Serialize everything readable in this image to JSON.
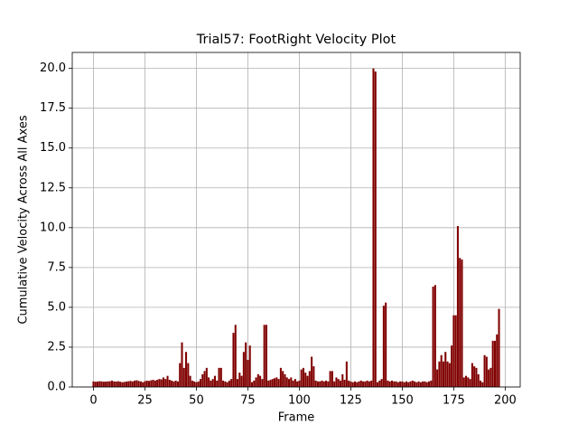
{
  "chart_data": {
    "type": "bar",
    "title": "Trial57: FootRight Velocity Plot",
    "x_label": "Frame",
    "y_label": "Cumulative Velocity Across All Axes",
    "color": "#800000",
    "grid": true,
    "xlim": [
      -10.3,
      207.3
    ],
    "ylim": [
      0,
      21.0
    ],
    "xticks": [
      0,
      25,
      50,
      75,
      100,
      125,
      150,
      175,
      200
    ],
    "yticks": [
      {
        "value": 0,
        "label": "0.0"
      },
      {
        "value": 2.5,
        "label": "2.5"
      },
      {
        "value": 5,
        "label": "5.0"
      },
      {
        "value": 7.5,
        "label": "7.5"
      },
      {
        "value": 10,
        "label": "10.0"
      },
      {
        "value": 12.5,
        "label": "12.5"
      },
      {
        "value": 15,
        "label": "15.0"
      },
      {
        "value": 17.5,
        "label": "17.5"
      },
      {
        "value": 20,
        "label": "20.0"
      }
    ],
    "x": [
      0,
      1,
      2,
      3,
      4,
      5,
      6,
      7,
      8,
      9,
      10,
      11,
      12,
      13,
      14,
      15,
      16,
      17,
      18,
      19,
      20,
      21,
      22,
      23,
      24,
      25,
      26,
      27,
      28,
      29,
      30,
      31,
      32,
      33,
      34,
      35,
      36,
      37,
      38,
      39,
      40,
      41,
      42,
      43,
      44,
      45,
      46,
      47,
      48,
      49,
      50,
      51,
      52,
      53,
      54,
      55,
      56,
      57,
      58,
      59,
      60,
      61,
      62,
      63,
      64,
      65,
      66,
      67,
      68,
      69,
      70,
      71,
      72,
      73,
      74,
      75,
      76,
      77,
      78,
      79,
      80,
      81,
      82,
      83,
      84,
      85,
      86,
      87,
      88,
      89,
      90,
      91,
      92,
      93,
      94,
      95,
      96,
      97,
      98,
      99,
      100,
      101,
      102,
      103,
      104,
      105,
      106,
      107,
      108,
      109,
      110,
      111,
      112,
      113,
      114,
      115,
      116,
      117,
      118,
      119,
      120,
      121,
      122,
      123,
      124,
      125,
      126,
      127,
      128,
      129,
      130,
      131,
      132,
      133,
      134,
      135,
      136,
      137,
      138,
      139,
      140,
      141,
      142,
      143,
      144,
      145,
      146,
      147,
      148,
      149,
      150,
      151,
      152,
      153,
      154,
      155,
      156,
      157,
      158,
      159,
      160,
      161,
      162,
      163,
      164,
      165,
      166,
      167,
      168,
      169,
      170,
      171,
      172,
      173,
      174,
      175,
      176,
      177,
      178,
      179,
      180,
      181,
      182,
      183,
      184,
      185,
      186,
      187,
      188,
      189,
      190,
      191,
      192,
      193,
      194,
      195,
      196,
      197
    ],
    "values": [
      0.35,
      0.33,
      0.34,
      0.36,
      0.35,
      0.33,
      0.34,
      0.35,
      0.36,
      0.4,
      0.35,
      0.34,
      0.36,
      0.33,
      0.3,
      0.32,
      0.34,
      0.36,
      0.38,
      0.35,
      0.4,
      0.42,
      0.38,
      0.35,
      0.3,
      0.36,
      0.4,
      0.38,
      0.42,
      0.45,
      0.4,
      0.45,
      0.5,
      0.48,
      0.6,
      0.5,
      0.7,
      0.45,
      0.4,
      0.35,
      0.4,
      0.35,
      1.5,
      2.8,
      1.2,
      2.2,
      1.5,
      0.7,
      0.4,
      0.35,
      0.3,
      0.35,
      0.5,
      0.8,
      1.0,
      1.2,
      0.6,
      0.4,
      0.5,
      0.7,
      0.4,
      1.2,
      1.2,
      0.4,
      0.35,
      0.3,
      0.4,
      0.5,
      3.4,
      3.9,
      0.5,
      0.9,
      0.7,
      2.2,
      2.8,
      1.7,
      2.6,
      0.3,
      0.4,
      0.6,
      0.8,
      0.7,
      0.5,
      3.9,
      3.9,
      0.4,
      0.45,
      0.5,
      0.55,
      0.6,
      0.5,
      1.2,
      1.0,
      0.8,
      0.6,
      0.5,
      0.6,
      0.4,
      0.5,
      0.35,
      0.4,
      1.1,
      1.2,
      0.9,
      0.7,
      1.0,
      1.9,
      1.3,
      0.4,
      0.35,
      0.35,
      0.4,
      0.35,
      0.4,
      0.35,
      1.0,
      1.0,
      0.35,
      0.6,
      0.5,
      0.4,
      0.8,
      0.45,
      1.6,
      0.4,
      0.35,
      0.3,
      0.35,
      0.3,
      0.35,
      0.4,
      0.35,
      0.35,
      0.4,
      0.35,
      0.4,
      20.0,
      19.8,
      0.3,
      0.4,
      0.5,
      5.1,
      5.3,
      0.4,
      0.35,
      0.4,
      0.35,
      0.35,
      0.3,
      0.35,
      0.35,
      0.3,
      0.35,
      0.3,
      0.35,
      0.4,
      0.35,
      0.3,
      0.35,
      0.3,
      0.35,
      0.35,
      0.3,
      0.35,
      0.4,
      6.3,
      6.4,
      1.1,
      1.6,
      2.0,
      1.6,
      2.2,
      1.6,
      1.5,
      2.6,
      4.5,
      4.5,
      10.1,
      8.1,
      8.0,
      0.6,
      0.7,
      0.6,
      0.5,
      1.5,
      1.3,
      1.2,
      0.8,
      0.4,
      0.3,
      2.0,
      1.9,
      1.1,
      1.2,
      2.9,
      2.9,
      3.3,
      4.9
    ]
  }
}
